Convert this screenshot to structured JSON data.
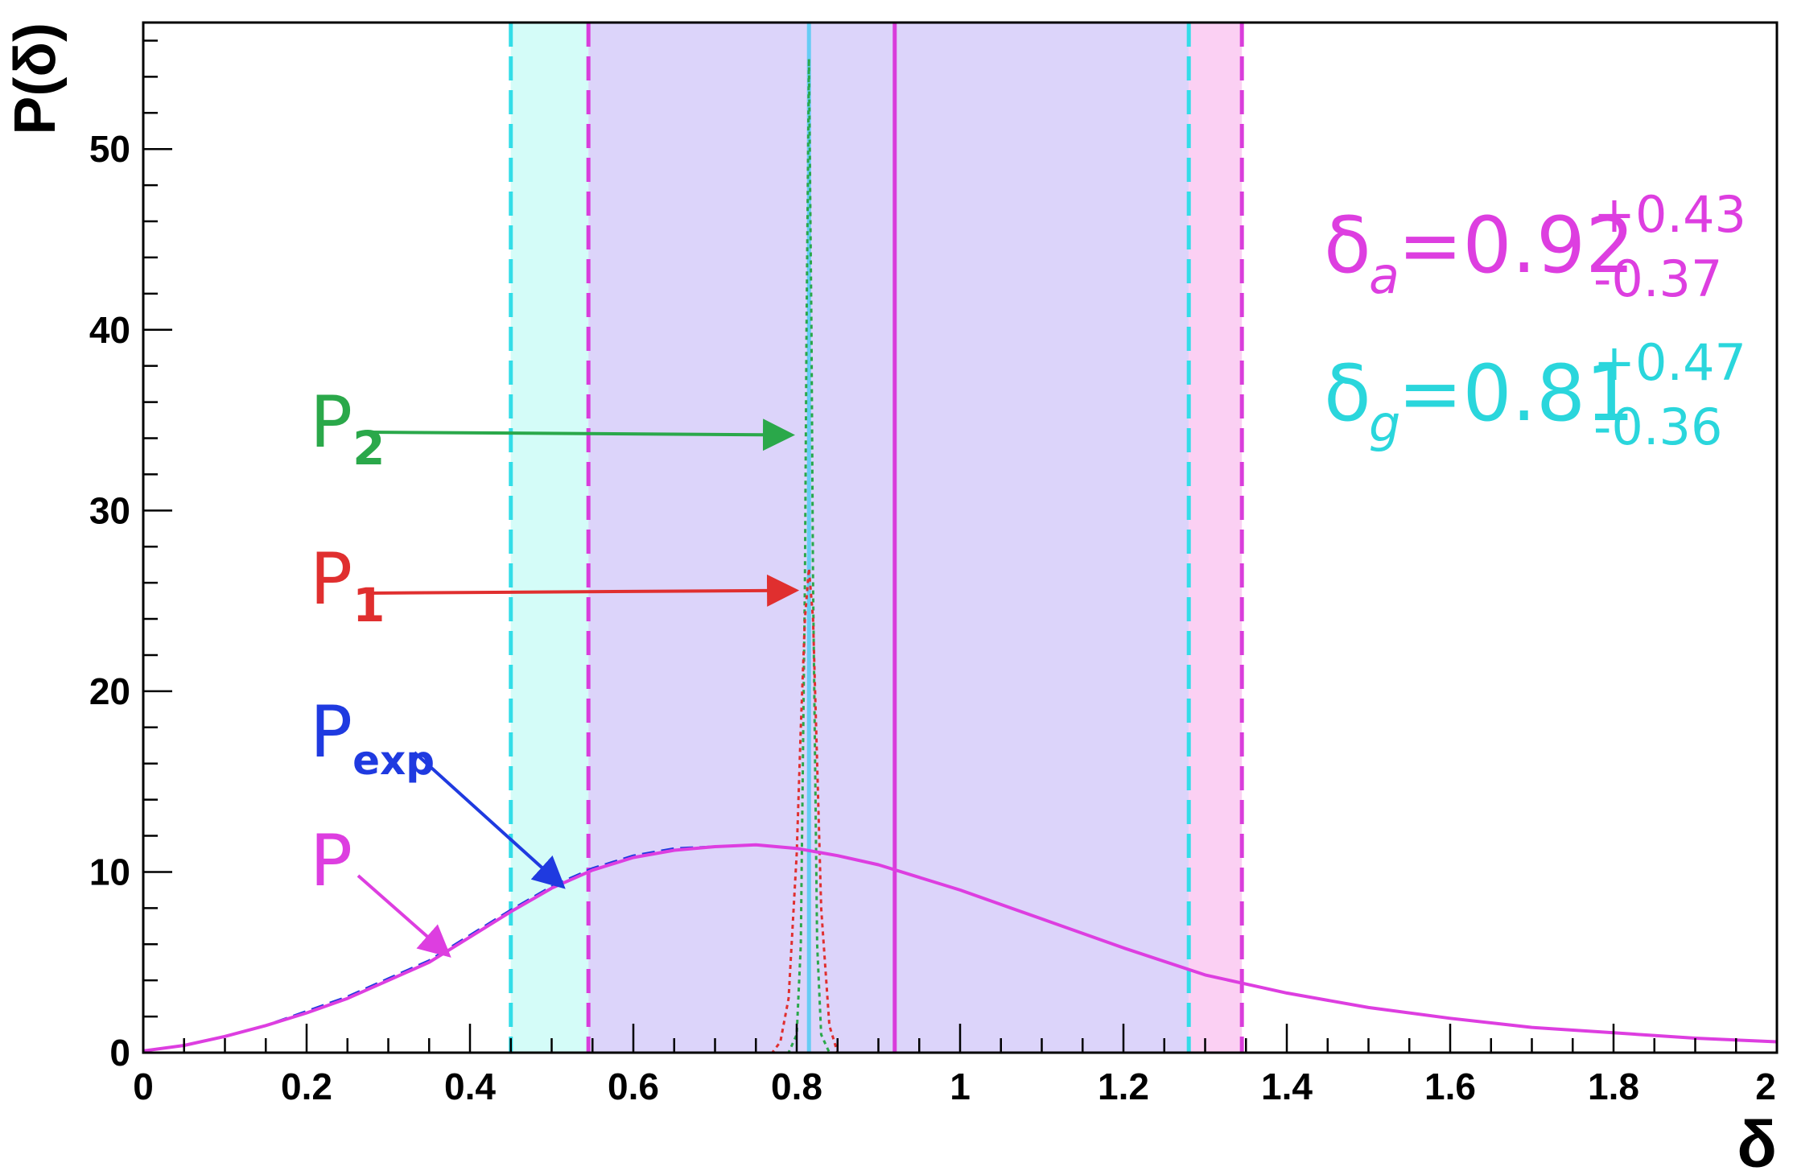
{
  "chart_data": {
    "type": "line",
    "xlabel": "δ",
    "ylabel": "P(δ)",
    "xlim": [
      0,
      2
    ],
    "ylim": [
      0,
      57
    ],
    "x_ticks": [
      "0",
      "0.2",
      "0.4",
      "0.6",
      "0.8",
      "1",
      "1.2",
      "1.4",
      "1.6",
      "1.8",
      "2"
    ],
    "y_ticks": [
      "0",
      "10",
      "20",
      "30",
      "40",
      "50"
    ],
    "grid": false,
    "bands": [
      {
        "name": "δ_g interval",
        "from": 0.45,
        "to": 1.28,
        "color": "#d4fcf8",
        "line_color": "#33dde8"
      },
      {
        "name": "δ_a interval",
        "from": 0.545,
        "to": 1.345,
        "color": "#fbd0f3",
        "line_color": "#d93ddb"
      }
    ],
    "overlap_color": "#dcd4fa",
    "vlines": [
      {
        "x": 0.92,
        "color": "#d93ddb",
        "style": "solid"
      },
      {
        "x": 0.815,
        "color": "#66ccf5",
        "style": "solid"
      }
    ],
    "series": [
      {
        "name": "P",
        "color": "#dd3ee0",
        "style": "solid",
        "x": [
          0,
          0.05,
          0.1,
          0.15,
          0.2,
          0.25,
          0.3,
          0.35,
          0.4,
          0.45,
          0.5,
          0.55,
          0.6,
          0.65,
          0.7,
          0.75,
          0.8,
          0.85,
          0.9,
          0.95,
          1.0,
          1.1,
          1.2,
          1.3,
          1.4,
          1.5,
          1.6,
          1.7,
          1.8,
          1.9,
          2.0
        ],
        "values": [
          0.1,
          0.4,
          0.9,
          1.5,
          2.2,
          3.0,
          4.0,
          5.0,
          6.4,
          7.8,
          9.1,
          10.1,
          10.8,
          11.2,
          11.4,
          11.5,
          11.3,
          10.9,
          10.4,
          9.7,
          9.0,
          7.4,
          5.8,
          4.3,
          3.3,
          2.5,
          1.9,
          1.4,
          1.1,
          0.8,
          0.6
        ]
      },
      {
        "name": "P_exp",
        "color": "#1f3ae0",
        "style": "dashed",
        "x": [
          0,
          0.05,
          0.1,
          0.15,
          0.2,
          0.25,
          0.3,
          0.35,
          0.4,
          0.45,
          0.5,
          0.55,
          0.6,
          0.65,
          0.7,
          0.75,
          0.8,
          0.85,
          0.9,
          0.95,
          1.0,
          1.1,
          1.2,
          1.3,
          1.4,
          1.5,
          1.6,
          1.7,
          1.8,
          1.9,
          2.0
        ],
        "values": [
          0.1,
          0.4,
          0.9,
          1.5,
          2.3,
          3.1,
          4.1,
          5.1,
          6.5,
          7.9,
          9.2,
          10.2,
          10.9,
          11.3,
          11.4,
          11.5,
          11.3,
          10.9,
          10.4,
          9.7,
          9.0,
          7.4,
          5.8,
          4.3,
          3.3,
          2.5,
          1.9,
          1.4,
          1.1,
          0.8,
          0.6
        ]
      },
      {
        "name": "P_1",
        "color": "#e02f2f",
        "style": "dotted",
        "x": [
          0,
          0.77,
          0.78,
          0.79,
          0.8,
          0.805,
          0.81,
          0.815,
          0.82,
          0.825,
          0.83,
          0.84,
          0.85,
          2.0
        ],
        "values": [
          0,
          0,
          0.6,
          3,
          11,
          18,
          24,
          26.8,
          24,
          16,
          8,
          1.5,
          0,
          0
        ]
      },
      {
        "name": "P_2",
        "color": "#2aa84a",
        "style": "dotted",
        "x": [
          0,
          0.79,
          0.8,
          0.805,
          0.81,
          0.812,
          0.815,
          0.818,
          0.82,
          0.825,
          0.83,
          0.84,
          2.0
        ],
        "values": [
          0,
          0,
          1,
          6,
          26,
          40,
          55,
          40,
          26,
          6,
          1,
          0,
          0
        ]
      }
    ],
    "annotations": [
      {
        "label": "P",
        "sub": "",
        "color": "#dd3ee0",
        "points_to": [
          0.38,
          5.2
        ]
      },
      {
        "label": "P",
        "sub": "exp",
        "color": "#1f3ae0",
        "points_to": [
          0.52,
          9.0
        ]
      },
      {
        "label": "P",
        "sub": "1",
        "color": "#e02f2f",
        "points_to": [
          0.805,
          25.4
        ]
      },
      {
        "label": "P",
        "sub": "2",
        "color": "#2aa84a",
        "points_to": [
          0.8,
          34.0
        ]
      }
    ],
    "results": [
      {
        "symbol": "δ",
        "sub": "a",
        "value": "=0.92",
        "plus": "+0.43",
        "minus": "-0.37",
        "color": "#dd3ee0"
      },
      {
        "symbol": "δ",
        "sub": "g",
        "value": "=0.81",
        "plus": "+0.47",
        "minus": "-0.36",
        "color": "#2ad6dc"
      }
    ]
  }
}
